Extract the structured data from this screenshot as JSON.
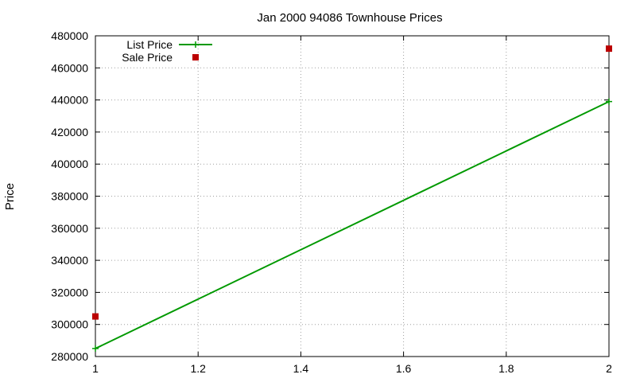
{
  "chart_data": {
    "type": "line",
    "title": "Jan 2000 94086 Townhouse Prices",
    "xlabel": "",
    "ylabel": "Price",
    "xlim": [
      1,
      2
    ],
    "ylim": [
      280000,
      480000
    ],
    "xticks": [
      1,
      1.2,
      1.4,
      1.6,
      1.8,
      2
    ],
    "xtick_labels": [
      "1",
      "1.2",
      "1.4",
      "1.6",
      "1.8",
      "2"
    ],
    "yticks": [
      280000,
      300000,
      320000,
      340000,
      360000,
      380000,
      400000,
      420000,
      440000,
      460000,
      480000
    ],
    "ytick_labels": [
      "280000",
      "300000",
      "320000",
      "340000",
      "360000",
      "380000",
      "400000",
      "420000",
      "440000",
      "460000",
      "480000"
    ],
    "grid": true,
    "legend_position": "top-left",
    "series": [
      {
        "name": "List Price",
        "style": "linespoints",
        "color": "#009900",
        "x": [
          1,
          2
        ],
        "y": [
          285000,
          439000
        ]
      },
      {
        "name": "Sale Price",
        "style": "points",
        "color": "#bb0000",
        "x": [
          1,
          2
        ],
        "y": [
          305000,
          472000
        ]
      }
    ]
  }
}
